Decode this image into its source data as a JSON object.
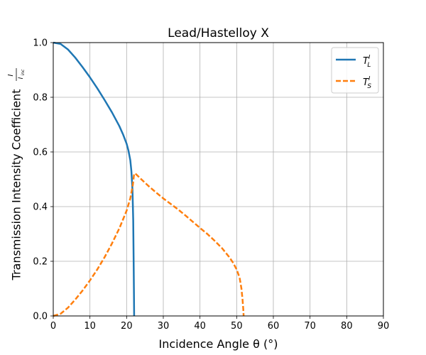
{
  "chart_data": {
    "type": "line",
    "title": "Lead/Hastelloy X",
    "xlabel": "Incidence Angle θ (°)",
    "ylabel_main": "Transmission Intensity Coefficient",
    "ylabel_frac_num": "I",
    "ylabel_frac_den": "I",
    "ylabel_frac_den_sub": "inc",
    "xlim": [
      0,
      90
    ],
    "ylim": [
      0,
      1
    ],
    "xticks": [
      "0",
      "10",
      "20",
      "30",
      "40",
      "50",
      "60",
      "70",
      "80",
      "90"
    ],
    "yticks": [
      "0.0",
      "0.2",
      "0.4",
      "0.6",
      "0.8",
      "1.0"
    ],
    "grid": true,
    "legend_position": "top-right",
    "series": [
      {
        "name": "T",
        "sup": "I",
        "sub": "L",
        "color": "#1f77b4",
        "style": "solid",
        "x": [
          0,
          2,
          4,
          6,
          8,
          10,
          12,
          14,
          16,
          18,
          19,
          20,
          20.5,
          21,
          21.3,
          21.6,
          21.8,
          21.9,
          22.0,
          22.05
        ],
        "y": [
          1.0,
          0.995,
          0.975,
          0.945,
          0.91,
          0.873,
          0.833,
          0.79,
          0.745,
          0.695,
          0.665,
          0.63,
          0.605,
          0.57,
          0.53,
          0.46,
          0.35,
          0.22,
          0.08,
          0.0
        ]
      },
      {
        "name": "T",
        "sup": "I",
        "sub": "S",
        "color": "#ff7f0e",
        "style": "dashed",
        "x": [
          0,
          2,
          4,
          6,
          8,
          10,
          12,
          14,
          16,
          18,
          20,
          21,
          21.7,
          22.0,
          22.3,
          24,
          26,
          28,
          30,
          32,
          34,
          36,
          38,
          40,
          42,
          44,
          46,
          48,
          49,
          50,
          50.8,
          51.3,
          51.6,
          51.8,
          51.9
        ],
        "y": [
          0.0,
          0.008,
          0.03,
          0.06,
          0.093,
          0.13,
          0.17,
          0.215,
          0.265,
          0.32,
          0.385,
          0.43,
          0.48,
          0.515,
          0.522,
          0.5,
          0.475,
          0.452,
          0.43,
          0.41,
          0.39,
          0.368,
          0.345,
          0.322,
          0.3,
          0.275,
          0.248,
          0.215,
          0.195,
          0.17,
          0.14,
          0.1,
          0.06,
          0.025,
          0.0
        ]
      }
    ]
  }
}
